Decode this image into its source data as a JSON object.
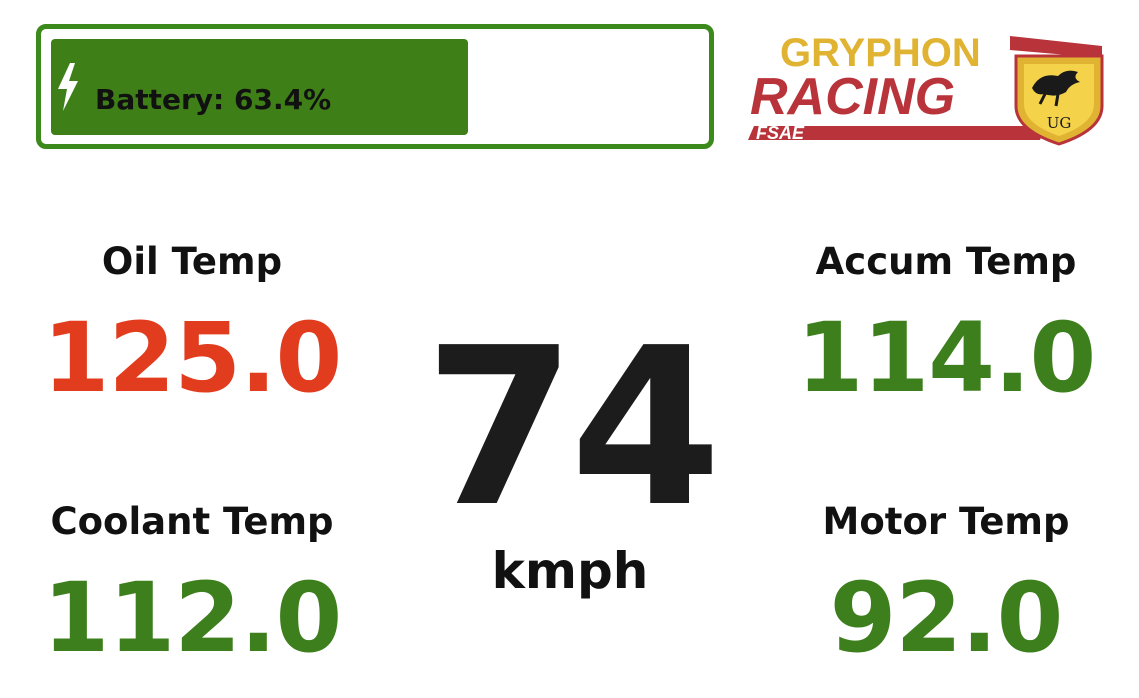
{
  "battery": {
    "label": "Battery: 63.4%",
    "level_percent": 63.4,
    "icon": "lightning-bolt-icon",
    "fill_color": "#3f7f17",
    "border_color": "#3d8a1c"
  },
  "logo": {
    "line1": "GRYPHON",
    "line2": "RACING",
    "line3": "FSAE",
    "shield_text": "UG",
    "colors": {
      "gold": "#e0b432",
      "red": "#b8333a"
    }
  },
  "speed": {
    "value": "74",
    "unit": "kmph"
  },
  "gauges": {
    "oil_temp": {
      "label": "Oil Temp",
      "value": "125.0",
      "color": "#e23c1e"
    },
    "coolant_temp": {
      "label": "Coolant Temp",
      "value": "112.0",
      "color": "#3d7f1c"
    },
    "accum_temp": {
      "label": "Accum Temp",
      "value": "114.0",
      "color": "#3d7f1c"
    },
    "motor_temp": {
      "label": "Motor Temp",
      "value": "92.0",
      "color": "#3d7f1c"
    }
  }
}
